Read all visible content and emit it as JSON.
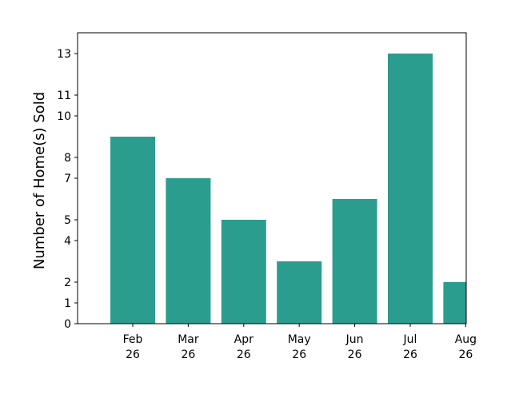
{
  "chart_data": {
    "type": "bar",
    "categories": [
      "Feb\n26",
      "Mar\n26",
      "Apr\n26",
      "May\n26",
      "Jun\n26",
      "Jul\n26",
      "Aug\n26"
    ],
    "values": [
      9,
      7,
      5,
      3,
      6,
      13,
      2
    ],
    "title": "",
    "xlabel": "",
    "ylabel": "Number of Home(s) Sold",
    "ylim": [
      0,
      13.0
    ],
    "yticks": [
      0,
      1,
      2,
      4,
      5,
      7,
      8,
      10,
      11,
      13
    ],
    "bar_color": "#2a9d8f",
    "grid": false,
    "note": "last bar (Aug 26) is clipped at the right edge of the plot area"
  }
}
